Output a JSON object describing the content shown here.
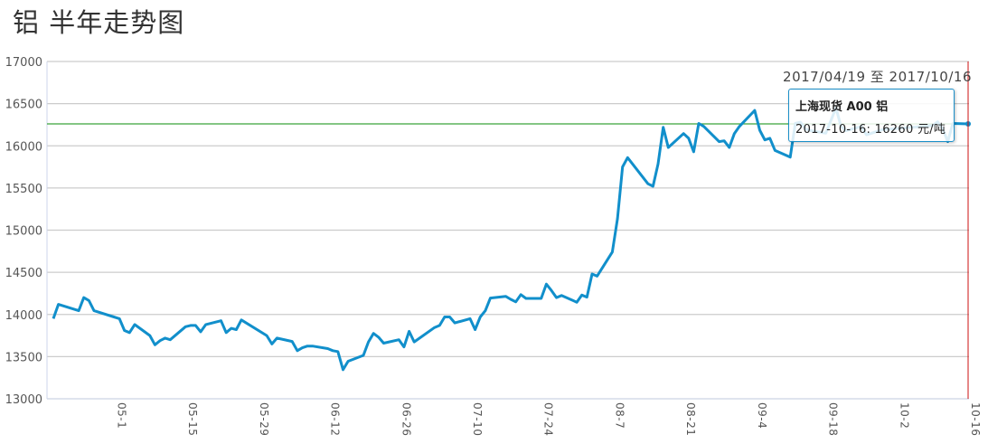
{
  "title": "铝 半年走势图",
  "date_range": "2017/04/19 至 2017/10/16",
  "tooltip": {
    "series": "上海现货 A00 铝",
    "value_line": "2017-10-16: 16260 元/吨"
  },
  "colors": {
    "line": "#118fcb",
    "reference": "#3aa33a",
    "crosshair": "#cc1111",
    "grid": "#cccccc"
  },
  "chart_data": {
    "type": "line",
    "title": "铝 半年走势图",
    "xlabel": "",
    "ylabel": "",
    "ylim": [
      13000,
      17000
    ],
    "xlim": [
      "2017-04-19",
      "2017-10-16"
    ],
    "yticks": [
      "13000",
      "13500",
      "14000",
      "14500",
      "15000",
      "15500",
      "16000",
      "16500",
      "17000"
    ],
    "xticks": [
      {
        "date": "2017-05-01",
        "label": "05-1"
      },
      {
        "date": "2017-05-15",
        "label": "05-15"
      },
      {
        "date": "2017-05-29",
        "label": "05-29"
      },
      {
        "date": "2017-06-12",
        "label": "06-12"
      },
      {
        "date": "2017-06-26",
        "label": "06-26"
      },
      {
        "date": "2017-07-10",
        "label": "07-10"
      },
      {
        "date": "2017-07-24",
        "label": "07-24"
      },
      {
        "date": "2017-08-07",
        "label": "08-7"
      },
      {
        "date": "2017-08-21",
        "label": "08-21"
      },
      {
        "date": "2017-09-04",
        "label": "09-4"
      },
      {
        "date": "2017-09-18",
        "label": "09-18"
      },
      {
        "date": "2017-10-02",
        "label": "10-2"
      },
      {
        "date": "2017-10-16",
        "label": "10-16"
      }
    ],
    "grid": true,
    "reference_line": 16260,
    "series": [
      {
        "x": [
          "2017-04-19",
          "2017-04-20",
          "2017-04-24",
          "2017-04-25",
          "2017-04-26",
          "2017-04-27",
          "2017-05-02",
          "2017-05-03",
          "2017-05-04",
          "2017-05-05",
          "2017-05-08",
          "2017-05-09",
          "2017-05-10",
          "2017-05-11",
          "2017-05-12",
          "2017-05-15",
          "2017-05-16",
          "2017-05-17",
          "2017-05-18",
          "2017-05-19",
          "2017-05-22",
          "2017-05-23",
          "2017-05-24",
          "2017-05-25",
          "2017-05-26",
          "2017-05-31",
          "2017-06-01",
          "2017-06-02",
          "2017-06-05",
          "2017-06-06",
          "2017-06-07",
          "2017-06-08",
          "2017-06-09",
          "2017-06-12",
          "2017-06-13",
          "2017-06-14",
          "2017-06-15",
          "2017-06-16",
          "2017-06-19",
          "2017-06-20",
          "2017-06-21",
          "2017-06-22",
          "2017-06-23",
          "2017-06-26",
          "2017-06-27",
          "2017-06-28",
          "2017-06-29",
          "2017-07-03",
          "2017-07-04",
          "2017-07-05",
          "2017-07-06",
          "2017-07-07",
          "2017-07-10",
          "2017-07-11",
          "2017-07-12",
          "2017-07-13",
          "2017-07-14",
          "2017-07-17",
          "2017-07-18",
          "2017-07-19",
          "2017-07-20",
          "2017-07-21",
          "2017-07-24",
          "2017-07-25",
          "2017-07-26",
          "2017-07-27",
          "2017-07-28",
          "2017-07-31",
          "2017-08-01",
          "2017-08-02",
          "2017-08-03",
          "2017-08-04",
          "2017-08-07",
          "2017-08-08",
          "2017-08-09",
          "2017-08-10",
          "2017-08-14",
          "2017-08-15",
          "2017-08-16",
          "2017-08-17",
          "2017-08-18",
          "2017-08-21",
          "2017-08-22",
          "2017-08-23",
          "2017-08-24",
          "2017-08-25",
          "2017-08-28",
          "2017-08-29",
          "2017-08-30",
          "2017-08-31",
          "2017-09-01",
          "2017-09-04",
          "2017-09-05",
          "2017-09-06",
          "2017-09-07",
          "2017-09-08",
          "2017-09-11",
          "2017-09-12",
          "2017-09-13",
          "2017-09-14",
          "2017-09-15",
          "2017-09-18",
          "2017-09-19",
          "2017-09-20",
          "2017-09-21",
          "2017-09-22",
          "2017-09-25",
          "2017-09-26",
          "2017-09-27",
          "2017-09-28",
          "2017-09-29",
          "2017-10-09",
          "2017-10-10",
          "2017-10-11",
          "2017-10-12",
          "2017-10-13",
          "2017-10-16"
        ],
        "y": [
          13950,
          14120,
          14045,
          14200,
          14165,
          14045,
          13950,
          13810,
          13785,
          13880,
          13750,
          13640,
          13690,
          13720,
          13700,
          13855,
          13870,
          13870,
          13795,
          13880,
          13925,
          13785,
          13835,
          13820,
          13935,
          13750,
          13650,
          13720,
          13680,
          13570,
          13605,
          13625,
          13625,
          13595,
          13570,
          13560,
          13345,
          13445,
          13515,
          13675,
          13775,
          13730,
          13660,
          13700,
          13615,
          13800,
          13675,
          13845,
          13870,
          13970,
          13970,
          13900,
          13950,
          13820,
          13970,
          14045,
          14195,
          14215,
          14180,
          14150,
          14235,
          14190,
          14190,
          14360,
          14285,
          14200,
          14225,
          14145,
          14230,
          14205,
          14480,
          14455,
          14740,
          15135,
          15750,
          15860,
          15550,
          15520,
          15785,
          16220,
          15980,
          16145,
          16090,
          15930,
          16265,
          16230,
          16050,
          16060,
          15980,
          16145,
          16230,
          16420,
          16185,
          16070,
          16090,
          15945,
          15865,
          16265,
          16280,
          16200,
          16180,
          16150,
          16300,
          16450,
          16230,
          16180,
          16230,
          16130,
          16150,
          16170,
          16190,
          16240,
          16285,
          16200,
          16050,
          16265,
          16260
        ]
      }
    ]
  }
}
